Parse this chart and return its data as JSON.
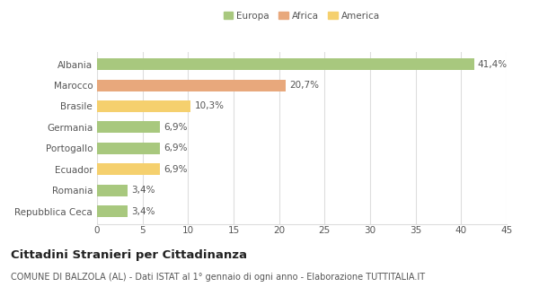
{
  "categories": [
    "Albania",
    "Marocco",
    "Brasile",
    "Germania",
    "Portogallo",
    "Ecuador",
    "Romania",
    "Repubblica Ceca"
  ],
  "values": [
    41.4,
    20.7,
    10.3,
    6.9,
    6.9,
    6.9,
    3.4,
    3.4
  ],
  "labels": [
    "41,4%",
    "20,7%",
    "10,3%",
    "6,9%",
    "6,9%",
    "6,9%",
    "3,4%",
    "3,4%"
  ],
  "colors": [
    "#a8c87e",
    "#e8a87c",
    "#f5d06e",
    "#a8c87e",
    "#a8c87e",
    "#f5d06e",
    "#a8c87e",
    "#a8c87e"
  ],
  "legend": [
    {
      "label": "Europa",
      "color": "#a8c87e"
    },
    {
      "label": "Africa",
      "color": "#e8a87c"
    },
    {
      "label": "America",
      "color": "#f5d06e"
    }
  ],
  "xlim": [
    0,
    45
  ],
  "xticks": [
    0,
    5,
    10,
    15,
    20,
    25,
    30,
    35,
    40,
    45
  ],
  "title": "Cittadini Stranieri per Cittadinanza",
  "subtitle": "COMUNE DI BALZOLA (AL) - Dati ISTAT al 1° gennaio di ogni anno - Elaborazione TUTTITALIA.IT",
  "background_color": "#ffffff",
  "grid_color": "#dddddd",
  "bar_height": 0.55,
  "title_fontsize": 9.5,
  "subtitle_fontsize": 7,
  "label_fontsize": 7.5,
  "tick_fontsize": 7.5
}
